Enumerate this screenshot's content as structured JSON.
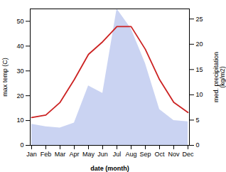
{
  "chart_data": {
    "type": "line",
    "categories": [
      "Jan",
      "Feb",
      "Mar",
      "Apr",
      "May",
      "Jun",
      "Jul",
      "Aug",
      "Sep",
      "Oct",
      "Nov",
      "Dec"
    ],
    "series": [
      {
        "type": "area",
        "color": "#b8c4ee",
        "values": [
          8.5,
          7.5,
          7.0,
          9.0,
          24,
          21,
          55,
          47,
          33,
          14.5,
          10,
          9.5
        ]
      },
      {
        "type": "line",
        "color": "#cc2222",
        "axis": "y2",
        "values": [
          5.5,
          6.0,
          8.5,
          13,
          18,
          20.5,
          23.5,
          23.5,
          19,
          13,
          8.5,
          6.5
        ]
      }
    ],
    "xlabel": "date (month)",
    "ylabel": "max temp (C)",
    "y2label": "med. precipitation\n(kg/m2)",
    "ylim": [
      0,
      55
    ],
    "yticks": [
      0,
      10,
      20,
      30,
      40,
      50
    ],
    "y2lim": [
      0,
      27
    ],
    "y2ticks": [
      0,
      5,
      10,
      15,
      20,
      25
    ],
    "grid": false
  }
}
